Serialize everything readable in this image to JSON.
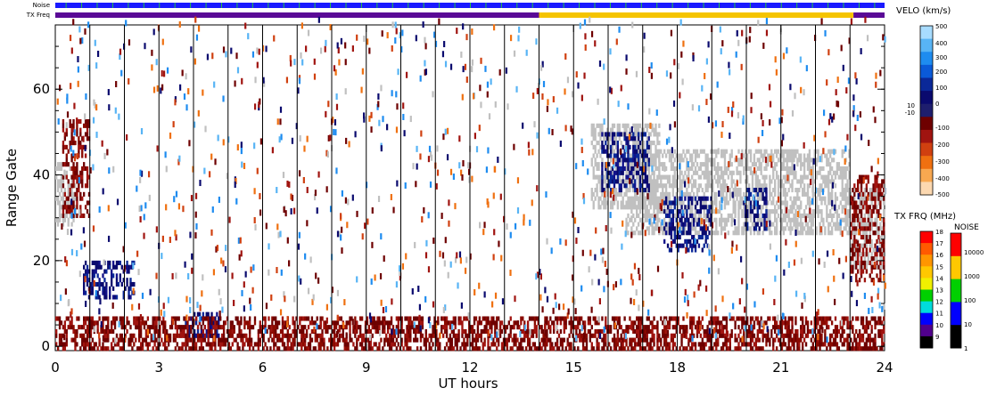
{
  "chart_data": {
    "type": "heatmap",
    "xlabel": "UT hours",
    "ylabel": "Range Gate",
    "xlim": [
      0,
      24
    ],
    "ylim": [
      -1,
      75
    ],
    "x_ticks": [
      "0",
      "3",
      "6",
      "9",
      "12",
      "15",
      "18",
      "21",
      "24"
    ],
    "x_tick_values": [
      0,
      3,
      6,
      9,
      12,
      15,
      18,
      21,
      24
    ],
    "y_ticks": [
      "0",
      "20",
      "40",
      "60"
    ],
    "y_tick_values": [
      0,
      20,
      40,
      60
    ],
    "hour_lines": [
      1,
      2,
      3,
      4,
      5,
      6,
      7,
      8,
      9,
      10,
      11,
      12,
      13,
      14,
      15,
      16,
      17,
      18,
      19,
      20,
      21,
      22,
      23
    ],
    "strips": {
      "noise_label": "Noise",
      "txfreq_label": "TX Freq",
      "noise_color": "#1a1aff",
      "txfreq_segments": [
        {
          "start": 0,
          "end": 14,
          "color": "#5a0a96"
        },
        {
          "start": 14,
          "end": 23.1,
          "color": "#f5c400"
        },
        {
          "start": 23.1,
          "end": 24,
          "color": "#5a0a96"
        }
      ]
    },
    "regions": [
      {
        "x": [
          0,
          0.6
        ],
        "y": [
          28,
          43
        ],
        "kind": "gs"
      },
      {
        "x": [
          0.2,
          1.0
        ],
        "y": [
          30,
          53
        ],
        "kind": "neg"
      },
      {
        "x": [
          0.8,
          2.3
        ],
        "y": [
          11,
          20
        ],
        "kind": "pos"
      },
      {
        "x": [
          3.7,
          4.7
        ],
        "y": [
          2,
          8
        ],
        "kind": "pos"
      },
      {
        "x": [
          0,
          24
        ],
        "y": [
          -1,
          7
        ],
        "kind": "neg"
      },
      {
        "x": [
          15.5,
          17.5
        ],
        "y": [
          32,
          52
        ],
        "kind": "gs"
      },
      {
        "x": [
          16.5,
          23.0
        ],
        "y": [
          26,
          46
        ],
        "kind": "gs"
      },
      {
        "x": [
          15.8,
          17.2
        ],
        "y": [
          36,
          50
        ],
        "kind": "pos"
      },
      {
        "x": [
          17.6,
          19.0
        ],
        "y": [
          22,
          35
        ],
        "kind": "pos"
      },
      {
        "x": [
          19.9,
          20.6
        ],
        "y": [
          27,
          37
        ],
        "kind": "pos"
      },
      {
        "x": [
          23.0,
          24.0
        ],
        "y": [
          18,
          37
        ],
        "kind": "gs"
      },
      {
        "x": [
          23.0,
          24.0
        ],
        "y": [
          15,
          40
        ],
        "kind": "neg"
      }
    ],
    "colorbars": {
      "velocity": {
        "label": "VELO (km/s)",
        "ticks": [
          "500",
          "400",
          "300",
          "200",
          "100",
          "0",
          "10",
          "-10",
          "-100",
          "-200",
          "-300",
          "-400",
          "-500"
        ],
        "colors": [
          "#a8dcff",
          "#58b4f5",
          "#1e8cf0",
          "#0a5ad8",
          "#0a2898",
          "#0a0a6e",
          "#1e1e6e",
          "#6e0000",
          "#a01410",
          "#d04010",
          "#ef7010",
          "#f8a850",
          "#fcd8b0"
        ],
        "ground_scatter": "#c0c0c0"
      },
      "tx_freq": {
        "label": "TX FRQ (MHz)",
        "ticks": [
          "18",
          "17",
          "16",
          "15",
          "14",
          "13",
          "12",
          "11",
          "10",
          "9"
        ],
        "colors": [
          "#ff0000",
          "#ff5a00",
          "#ff9600",
          "#ffc800",
          "#f0f000",
          "#00d000",
          "#00dcdc",
          "#0000ff",
          "#50008c",
          "#000000"
        ]
      },
      "noise": {
        "label": "NOISE",
        "ticks": [
          "10000",
          "1000",
          "100",
          "10",
          "1"
        ],
        "colors": [
          "#ff0000",
          "#ffc800",
          "#00d000",
          "#0000ff",
          "#000000"
        ]
      }
    }
  }
}
